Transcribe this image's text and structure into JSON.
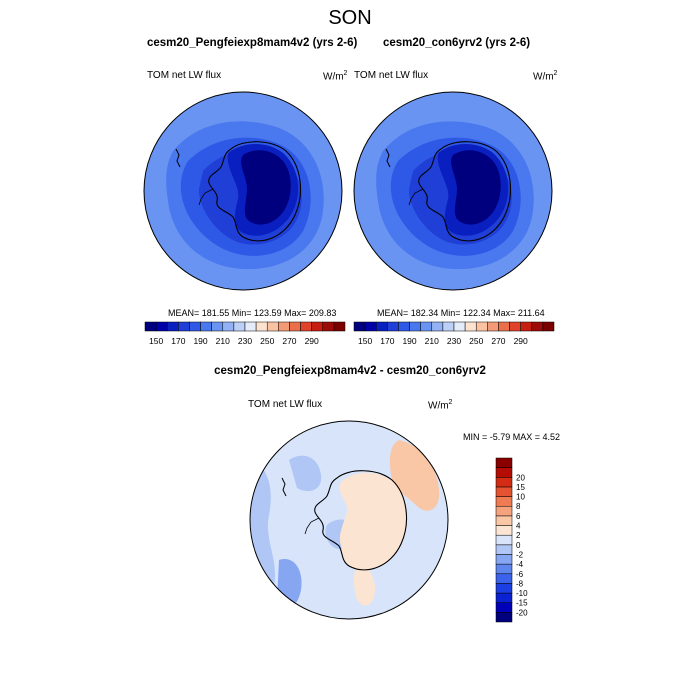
{
  "figure": {
    "title": "SON",
    "panels": [
      {
        "subtitle": "cesm20_Pengfeiexp8mam4v2 (yrs 2-6)",
        "left_label": "TOM net LW flux",
        "units_base": "W/m",
        "units_exp": "2",
        "stats": "MEAN= 181.55  Min= 123.59  Max= 209.83"
      },
      {
        "subtitle": "cesm20_con6yrv2 (yrs 2-6)",
        "left_label": "TOM net LW flux",
        "units_base": "W/m",
        "units_exp": "2",
        "stats": "MEAN= 182.34  Min= 122.34  Max= 211.64"
      }
    ],
    "diff_panel": {
      "subtitle": "cesm20_Pengfeiexp8mam4v2 - cesm20_con6yrv2",
      "left_label": "TOM net LW flux",
      "units_base": "W/m",
      "units_exp": "2",
      "stats": "MIN =  -5.79 MAX =   4.52"
    }
  },
  "colorbar_abs": {
    "colors": [
      "#00007f",
      "#0000a8",
      "#0a1fbf",
      "#1f3fd6",
      "#2e59e6",
      "#4a78ee",
      "#6a94f2",
      "#93b1f5",
      "#bcd0f7",
      "#e4ecf9",
      "#fde3cf",
      "#f9c2a3",
      "#f39b77",
      "#ec6f4c",
      "#e0432a",
      "#c71e12",
      "#9c0b07",
      "#7a0000"
    ],
    "tick_labels": [
      "150",
      "170",
      "190",
      "210",
      "230",
      "250",
      "270",
      "290"
    ]
  },
  "colorbar_diff": {
    "colors": [
      "#00007f",
      "#0000b8",
      "#0b22d4",
      "#1c3fe3",
      "#3a62ea",
      "#5f86ef",
      "#87a6f2",
      "#b0c6f5",
      "#d7e4fa",
      "#fbe4d2",
      "#f9c6a6",
      "#f5a37c",
      "#ef7b53",
      "#e55330",
      "#d32b14",
      "#b50d06",
      "#8a0000"
    ],
    "tick_labels": [
      "-20",
      "-15",
      "-10",
      "-8",
      "-6",
      "-4",
      "-2",
      "0",
      "2",
      "4",
      "6",
      "8",
      "10",
      "15",
      "20"
    ]
  }
}
